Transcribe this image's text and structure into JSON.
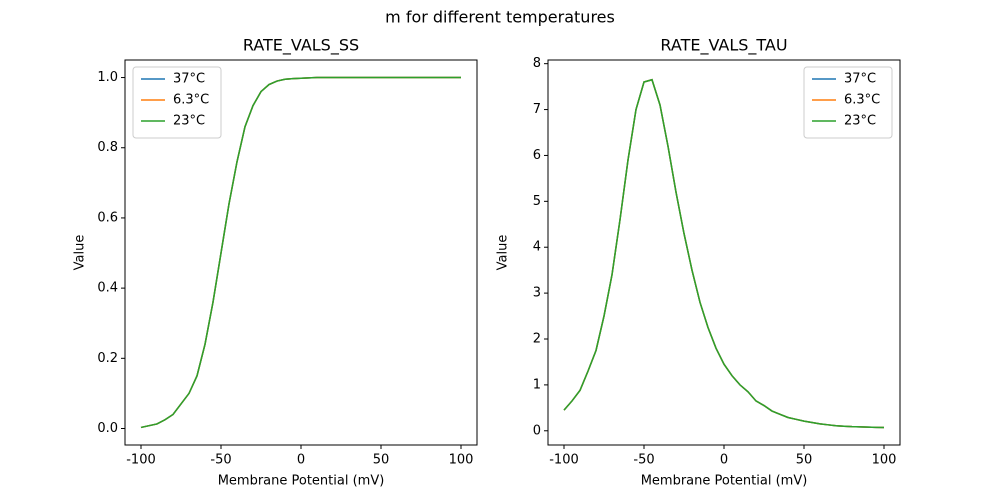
{
  "title": "m for different temperatures",
  "chart_data": [
    {
      "type": "line",
      "title": "RATE_VALS_SS",
      "xlabel": "Membrane Potential (mV)",
      "ylabel": "Value",
      "x": [
        -100,
        -95,
        -90,
        -85,
        -80,
        -75,
        -70,
        -65,
        -60,
        -55,
        -50,
        -45,
        -40,
        -35,
        -30,
        -25,
        -20,
        -15,
        -10,
        -5,
        0,
        5,
        10,
        15,
        20,
        25,
        30,
        35,
        40,
        45,
        50,
        55,
        60,
        65,
        70,
        75,
        80,
        85,
        90,
        95,
        100
      ],
      "series": [
        {
          "name": "37°C",
          "color": "#1f77b4",
          "values": [
            0.003,
            0.008,
            0.013,
            0.025,
            0.04,
            0.07,
            0.1,
            0.15,
            0.24,
            0.36,
            0.5,
            0.64,
            0.76,
            0.86,
            0.92,
            0.96,
            0.98,
            0.99,
            0.995,
            0.997,
            0.998,
            0.999,
            1.0,
            1.0,
            1.0,
            1.0,
            1.0,
            1.0,
            1.0,
            1.0,
            1.0,
            1.0,
            1.0,
            1.0,
            1.0,
            1.0,
            1.0,
            1.0,
            1.0,
            1.0,
            1.0
          ]
        },
        {
          "name": "6.3°C",
          "color": "#ff7f0e",
          "values": [
            0.003,
            0.008,
            0.013,
            0.025,
            0.04,
            0.07,
            0.1,
            0.15,
            0.24,
            0.36,
            0.5,
            0.64,
            0.76,
            0.86,
            0.92,
            0.96,
            0.98,
            0.99,
            0.995,
            0.997,
            0.998,
            0.999,
            1.0,
            1.0,
            1.0,
            1.0,
            1.0,
            1.0,
            1.0,
            1.0,
            1.0,
            1.0,
            1.0,
            1.0,
            1.0,
            1.0,
            1.0,
            1.0,
            1.0,
            1.0,
            1.0
          ]
        },
        {
          "name": "23°C",
          "color": "#2ca02c",
          "values": [
            0.003,
            0.008,
            0.013,
            0.025,
            0.04,
            0.07,
            0.1,
            0.15,
            0.24,
            0.36,
            0.5,
            0.64,
            0.76,
            0.86,
            0.92,
            0.96,
            0.98,
            0.99,
            0.995,
            0.997,
            0.998,
            0.999,
            1.0,
            1.0,
            1.0,
            1.0,
            1.0,
            1.0,
            1.0,
            1.0,
            1.0,
            1.0,
            1.0,
            1.0,
            1.0,
            1.0,
            1.0,
            1.0,
            1.0,
            1.0,
            1.0
          ]
        }
      ],
      "xlim": [
        -110,
        110
      ],
      "xticks": [
        -100,
        -50,
        0,
        50,
        100
      ],
      "ylim": [
        -0.047,
        1.05
      ],
      "yticks": [
        {
          "value": 0,
          "label": "0.0"
        },
        0.2,
        0.4,
        0.6,
        0.8,
        {
          "value": 1,
          "label": "1.0"
        }
      ],
      "legend": "upper left"
    },
    {
      "type": "line",
      "title": "RATE_VALS_TAU",
      "xlabel": "Membrane Potential (mV)",
      "ylabel": "Value",
      "x": [
        -100,
        -95,
        -90,
        -85,
        -80,
        -75,
        -70,
        -65,
        -60,
        -55,
        -50,
        -45,
        -40,
        -35,
        -30,
        -25,
        -20,
        -15,
        -10,
        -5,
        0,
        5,
        10,
        15,
        20,
        25,
        30,
        35,
        40,
        45,
        50,
        55,
        60,
        65,
        70,
        75,
        80,
        85,
        90,
        95,
        100
      ],
      "series": [
        {
          "name": "37°C",
          "color": "#1f77b4",
          "values": [
            0.45,
            0.65,
            0.88,
            1.3,
            1.75,
            2.5,
            3.4,
            4.6,
            5.9,
            7.0,
            7.6,
            7.65,
            7.1,
            6.2,
            5.2,
            4.3,
            3.5,
            2.8,
            2.25,
            1.8,
            1.45,
            1.2,
            1.0,
            0.85,
            0.65,
            0.55,
            0.43,
            0.36,
            0.29,
            0.25,
            0.21,
            0.18,
            0.15,
            0.13,
            0.11,
            0.1,
            0.09,
            0.085,
            0.08,
            0.075,
            0.07
          ]
        },
        {
          "name": "6.3°C",
          "color": "#ff7f0e",
          "values": [
            0.45,
            0.65,
            0.88,
            1.3,
            1.75,
            2.5,
            3.4,
            4.6,
            5.9,
            7.0,
            7.6,
            7.65,
            7.1,
            6.2,
            5.2,
            4.3,
            3.5,
            2.8,
            2.25,
            1.8,
            1.45,
            1.2,
            1.0,
            0.85,
            0.65,
            0.55,
            0.43,
            0.36,
            0.29,
            0.25,
            0.21,
            0.18,
            0.15,
            0.13,
            0.11,
            0.1,
            0.09,
            0.085,
            0.08,
            0.075,
            0.07
          ]
        },
        {
          "name": "23°C",
          "color": "#2ca02c",
          "values": [
            0.45,
            0.65,
            0.88,
            1.3,
            1.75,
            2.5,
            3.4,
            4.6,
            5.9,
            7.0,
            7.6,
            7.65,
            7.1,
            6.2,
            5.2,
            4.3,
            3.5,
            2.8,
            2.25,
            1.8,
            1.45,
            1.2,
            1.0,
            0.85,
            0.65,
            0.55,
            0.43,
            0.36,
            0.29,
            0.25,
            0.21,
            0.18,
            0.15,
            0.13,
            0.11,
            0.1,
            0.09,
            0.085,
            0.08,
            0.075,
            0.07
          ]
        }
      ],
      "xlim": [
        -110,
        110
      ],
      "xticks": [
        -100,
        -50,
        0,
        50,
        100
      ],
      "ylim": [
        -0.31,
        8.08
      ],
      "yticks": [
        0,
        1,
        2,
        3,
        4,
        5,
        6,
        7,
        8
      ],
      "legend": "upper right"
    }
  ]
}
